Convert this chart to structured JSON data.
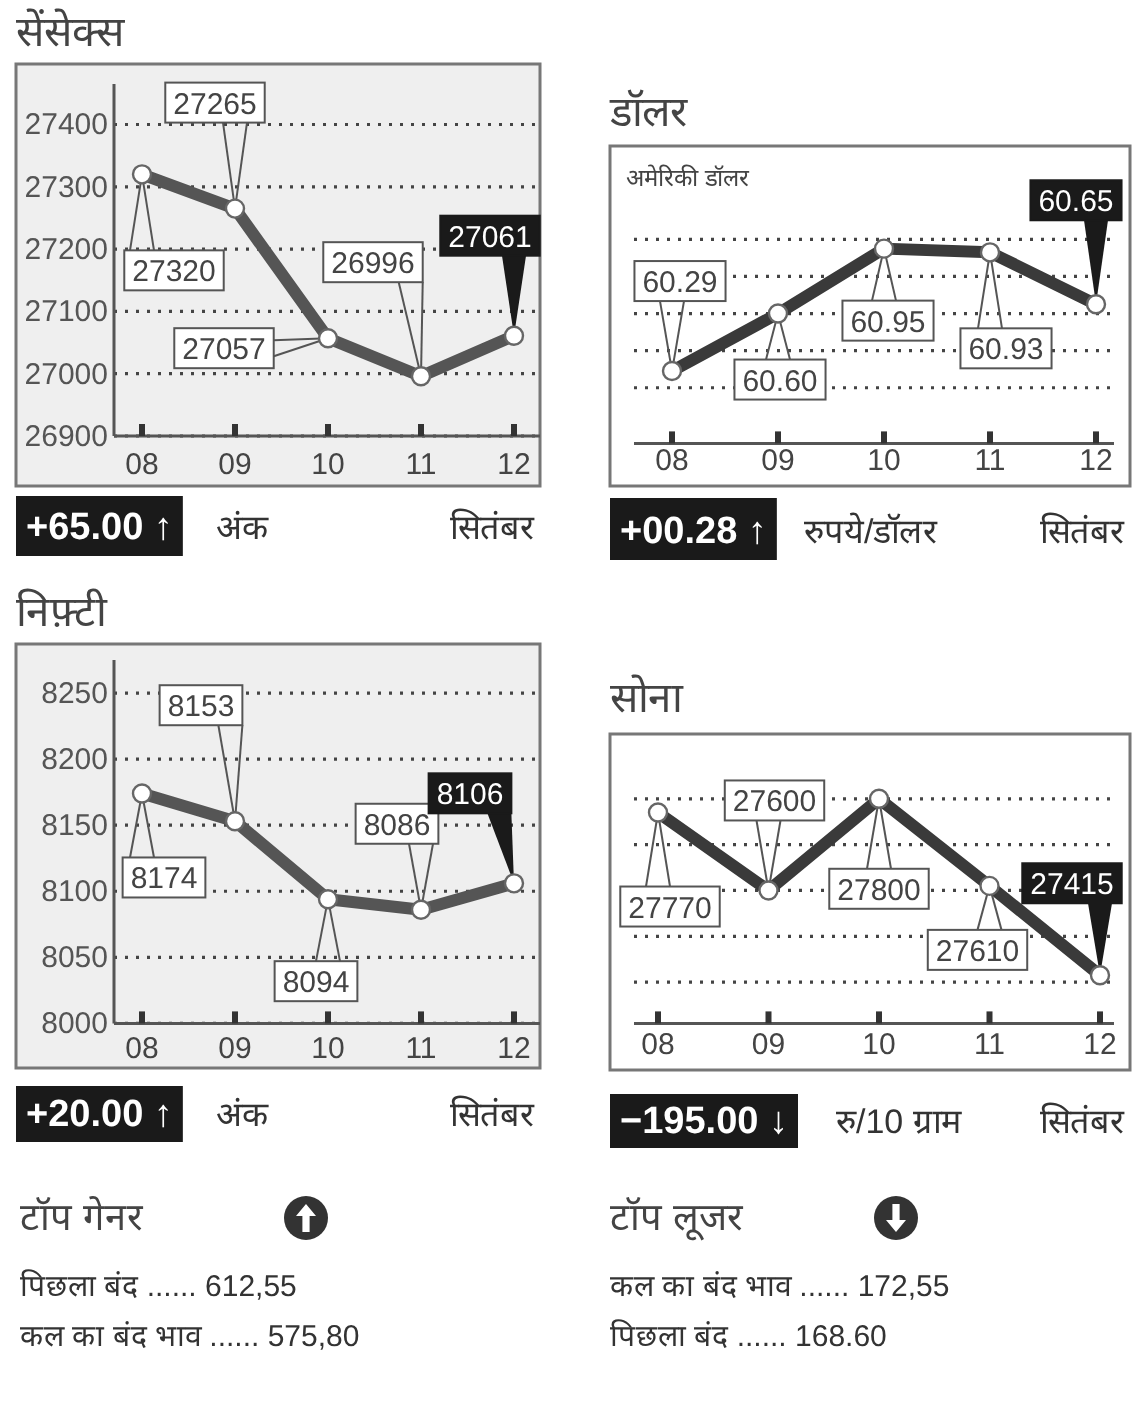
{
  "chart_data": [
    {
      "type": "line",
      "title": "सेंसेक्स",
      "xlabel": "सितंबर",
      "categories": [
        "08",
        "09",
        "10",
        "11",
        "12"
      ],
      "values": [
        27320,
        27265,
        27057,
        26996,
        27061
      ],
      "color": "#555555",
      "ylim": [
        26900,
        27465
      ],
      "yticks": [
        26900,
        27000,
        27100,
        27200,
        27300,
        27400
      ],
      "grid": "y",
      "marker": "circle",
      "data_labels": true,
      "annotations": [
        "+65.00 ↑",
        "अंक"
      ]
    },
    {
      "type": "line",
      "title": "डॉलर",
      "subtitle": "अमेरिकी डॉलर",
      "xlabel": "सितंबर",
      "categories": [
        "08",
        "09",
        "10",
        "11",
        "12"
      ],
      "values": [
        60.29,
        60.6,
        60.95,
        60.93,
        60.65
      ],
      "value_labels": [
        "60.29",
        "60.60",
        "60.95",
        "60.93",
        "60.65"
      ],
      "color": "#3a3a3a",
      "ylim": [
        59.9,
        61.5
      ],
      "yticks": [
        {
          "value": 60.2,
          "label": null
        },
        {
          "value": 60.4,
          "label": null
        },
        {
          "value": 60.6,
          "label": null
        },
        {
          "value": 60.8,
          "label": null
        },
        {
          "value": 61.0,
          "label": null
        }
      ],
      "tick_labels": "x",
      "grid": "y",
      "marker": "circle",
      "annotations": [
        "+00.28 ↑",
        "रुपये/डॉलर"
      ]
    },
    {
      "type": "line",
      "title": "निफ़्टी",
      "xlabel": "सितंबर",
      "categories": [
        "08",
        "09",
        "10",
        "11",
        "12"
      ],
      "values": [
        8174,
        8153,
        8094,
        8086,
        8106
      ],
      "color": "#555555",
      "ylim": [
        8000,
        8275
      ],
      "yticks": [
        8000,
        8050,
        8100,
        8150,
        8200,
        8250
      ],
      "grid": "y",
      "marker": "circle",
      "data_labels": true,
      "annotations": [
        "+20.00 ↑",
        "अंक"
      ]
    },
    {
      "type": "line",
      "title": "सोना",
      "xlabel": "सितंबर",
      "categories": [
        "08",
        "09",
        "10",
        "11",
        "12"
      ],
      "values": [
        27770,
        27600,
        27800,
        27610,
        27415
      ],
      "color": "#3a3a3a",
      "ylim": [
        27310,
        27940
      ],
      "yticks": [
        {
          "value": 27400,
          "label": null
        },
        {
          "value": 27500,
          "label": null
        },
        {
          "value": 27600,
          "label": null
        },
        {
          "value": 27700,
          "label": null
        },
        {
          "value": 27800,
          "label": null
        }
      ],
      "tick_labels": "x",
      "grid": "y",
      "marker": "circle",
      "data_labels": true,
      "annotations": [
        "−195.00 ↓",
        "रु/10 ग्राम"
      ]
    },
    {
      "type": "other",
      "title": "टॉप गेनर",
      "annotations": [
        "पिछला बंद ...... 612,55",
        "कल का बंद भाव ...... 575,80"
      ]
    },
    {
      "type": "other",
      "title": "टॉप लूजर",
      "annotations": [
        "कल का बंद भाव ...... 172,55",
        "पिछला बंद ...... 168.60"
      ]
    }
  ]
}
